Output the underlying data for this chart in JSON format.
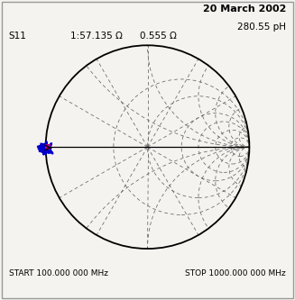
{
  "title_date": "20 March 2002",
  "title_params": "280.55 pH",
  "label_s11": "S11",
  "label_impedance": "1:57.135 Ω",
  "label_resistance": "0.555 Ω",
  "start_freq": "START 100.000 000 MHz",
  "stop_freq": "STOP 1000.000 000 MHz",
  "background_color": "#f5f3ef",
  "outer_circle_color": "#000000",
  "grid_color": "#666666",
  "trace_color": "#0000cc",
  "marker_color": "#dd0077",
  "figure_bg": "#dedad4",
  "border_color": "#888888"
}
